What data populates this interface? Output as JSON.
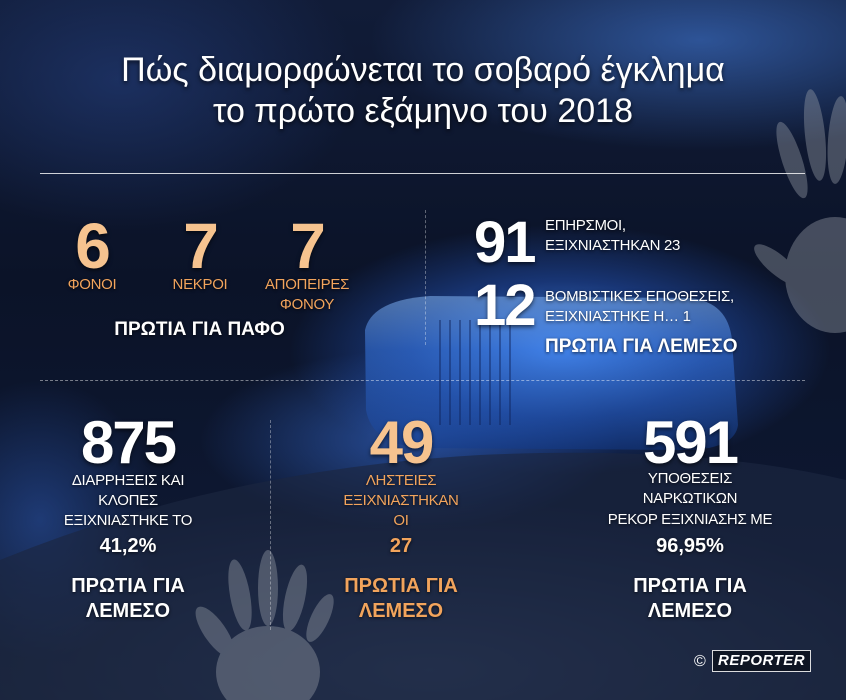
{
  "title": {
    "line1": "Πώς διαμορφώνεται το σοβαρό έγκλημα",
    "line2": "το πρώτο εξάμηνο του 2018"
  },
  "top_left": {
    "stats": [
      {
        "number": "6",
        "label": [
          "ΦΟΝΟΙ"
        ]
      },
      {
        "number": "7",
        "label": [
          "ΝΕΚΡΟΙ"
        ]
      },
      {
        "number": "7",
        "label": [
          "ΑΠΟΠΕΙΡΕΣ",
          "ΦΟΝΟΥ"
        ]
      }
    ],
    "footer": "ΠΡΩΤΙΑ ΓΙΑ ΠΑΦΟ"
  },
  "top_right": {
    "stats": [
      {
        "number": "91",
        "lines": [
          "ΕΠΗΡΣΜΟΙ,",
          "ΕΞΙΧΝΙΑΣΤΗΚΑΝ 23"
        ]
      },
      {
        "number": "12",
        "lines": [
          "ΒΟΜΒΙΣΤΙΚΕΣ ΕΠΟΘΕΣΕΙΣ,",
          "ΕΞΙΧΝΙΑΣΤΗΚΕ Η… 1"
        ]
      }
    ],
    "footer": "ΠΡΩΤΙΑ ΓΙΑ ΛΕΜΕΣΟ"
  },
  "bottom": {
    "columns": [
      {
        "number": "875",
        "lines": [
          "ΔΙΑΡΡΗΞΕΙΣ ΚΑΙ",
          "ΚΛΟΠΕΣ",
          "ΕΞΙΧΝΙΑΣΤΗΚΕ ΤΟ"
        ],
        "highlight": "41,2%",
        "footer": [
          "ΠΡΩΤΙΑ ΓΙΑ",
          "ΛΕΜΕΣΟ"
        ]
      },
      {
        "number": "49",
        "lines": [
          "ΛΗΣΤΕΙΕΣ",
          "ΕΞΙΧΝΙΑΣΤΗΚΑΝ",
          "ΟΙ"
        ],
        "highlight": "27",
        "footer": [
          "ΠΡΩΤΙΑ ΓΙΑ",
          "ΛΕΜΕΣΟ"
        ]
      },
      {
        "number": "591",
        "lines": [
          "ΥΠΟΘΕΣΕΙΣ",
          "ΝΑΡΚΩΤΙΚΩΝ",
          "ΡΕΚΟΡ ΕΞΙΧΝΙΑΣΗΣ ΜΕ"
        ],
        "highlight": "96,95%",
        "footer": [
          "ΠΡΩΤΙΑ ΓΙΑ",
          "ΛΕΜΕΣΟ"
        ]
      }
    ]
  },
  "credit": {
    "symbol": "©",
    "brand": "REPORTER"
  },
  "icons": [
    "handprint-graphic",
    "police-light-bar-graphic"
  ],
  "colors": {
    "accent_number": "#f6c38f",
    "accent_text": "#f2a45c",
    "text": "#ffffff",
    "background": "#0b1328",
    "light_blue": "#2f6fe0"
  }
}
